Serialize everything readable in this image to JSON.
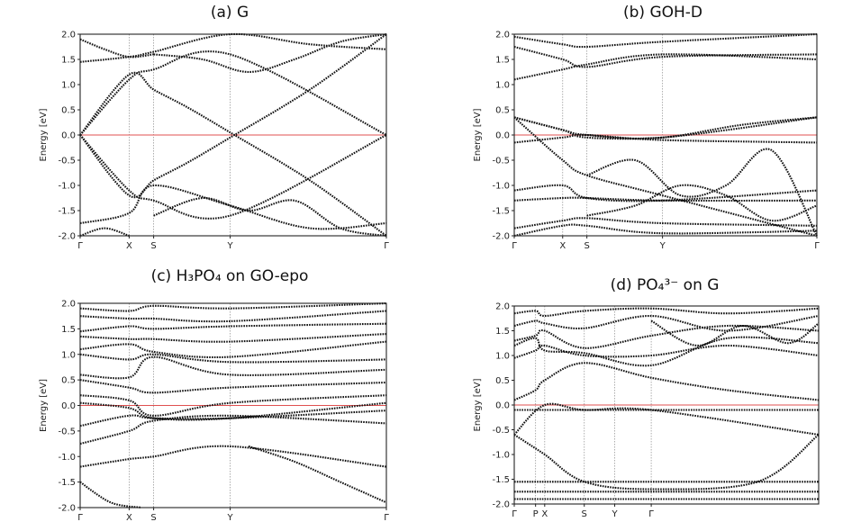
{
  "chart_data": [
    {
      "type": "line",
      "title": "(a) G",
      "ylabel": "Energy [eV]",
      "ylim": [
        -2.0,
        2.0
      ],
      "yticks": [
        "2.0",
        "1.5",
        "1.0",
        "0.5",
        "0.0",
        "-0.5",
        "-1.0",
        "-1.5",
        "-2.0"
      ],
      "kpoints": [
        {
          "label": "Γ",
          "x": 0
        },
        {
          "label": "X",
          "x": 0.16
        },
        {
          "label": "S",
          "x": 0.24
        },
        {
          "label": "Y",
          "x": 0.49
        },
        {
          "label": "Γ",
          "x": 1
        }
      ],
      "fermi_level": 0.0,
      "series": [
        {
          "x": [
            0,
            0.16,
            0.24,
            0.49,
            1
          ],
          "values": [
            0,
            1.1,
            1.3,
            1.6,
            0
          ]
        },
        {
          "x": [
            0,
            0.16,
            0.24,
            0.49,
            1
          ],
          "values": [
            0,
            -1.1,
            -1.3,
            -1.6,
            0
          ]
        },
        {
          "x": [
            0,
            0.16,
            0.24,
            0.35,
            0.49,
            0.75,
            1
          ],
          "values": [
            0,
            1.2,
            0.9,
            0.55,
            0.05,
            -0.9,
            -2.0
          ]
        },
        {
          "x": [
            0,
            0.16,
            0.24,
            0.35,
            0.49,
            0.75,
            1
          ],
          "values": [
            0,
            -1.2,
            -0.9,
            -0.55,
            -0.05,
            0.9,
            2.0
          ]
        },
        {
          "x": [
            0,
            0.16,
            0.24,
            0.49,
            0.75,
            1
          ],
          "values": [
            1.45,
            1.55,
            1.65,
            2.0,
            1.8,
            1.7
          ]
        },
        {
          "x": [
            0,
            0.16,
            0.24,
            0.49,
            0.75,
            1
          ],
          "values": [
            -1.75,
            -1.55,
            -1.0,
            -1.4,
            -1.85,
            -1.75
          ]
        },
        {
          "x": [
            0,
            0.08,
            0.16,
            0.24
          ],
          "values": [
            1.9,
            1.7,
            1.55,
            1.6
          ]
        },
        {
          "x": [
            0,
            0.08,
            0.16
          ],
          "values": [
            -2.0,
            -1.85,
            -2.0
          ]
        },
        {
          "x": [
            0.24,
            0.4,
            0.55,
            0.7,
            0.85,
            1
          ],
          "values": [
            1.6,
            1.5,
            1.25,
            1.5,
            1.85,
            2.0
          ]
        },
        {
          "x": [
            0.24,
            0.4,
            0.55,
            0.7,
            0.85,
            1
          ],
          "values": [
            -1.6,
            -1.25,
            -1.5,
            -1.3,
            -1.85,
            -2.0
          ]
        }
      ]
    },
    {
      "type": "line",
      "title": "(b) GOH-D",
      "ylabel": "Energy [eV]",
      "ylim": [
        -2.0,
        2.0
      ],
      "yticks": [
        "2.0",
        "1.5",
        "1.0",
        "0.5",
        "0.0",
        "-0.5",
        "-1.0",
        "-1.5",
        "-2.0"
      ],
      "kpoints": [
        {
          "label": "Γ",
          "x": 0
        },
        {
          "label": "X",
          "x": 0.16
        },
        {
          "label": "S",
          "x": 0.24
        },
        {
          "label": "Y",
          "x": 0.49
        },
        {
          "label": "Γ",
          "x": 1
        }
      ],
      "fermi_level": 0.0,
      "series": [
        {
          "x": [
            0,
            0.16,
            0.24,
            0.49,
            1
          ],
          "values": [
            0.35,
            0.1,
            0.0,
            -0.05,
            0.35
          ]
        },
        {
          "x": [
            0,
            0.16,
            0.24,
            0.49,
            1
          ],
          "values": [
            0.35,
            -0.5,
            -0.8,
            -1.2,
            -2.0
          ]
        },
        {
          "x": [
            0,
            0.16,
            0.24,
            0.49,
            1
          ],
          "values": [
            -0.15,
            -0.05,
            0.0,
            -0.1,
            -0.15
          ]
        },
        {
          "x": [
            0,
            0.16,
            0.24,
            0.49,
            0.75,
            1
          ],
          "values": [
            0.35,
            0.1,
            -0.05,
            -0.05,
            0.2,
            0.35
          ]
        },
        {
          "x": [
            0,
            0.16,
            0.24,
            0.49,
            1
          ],
          "values": [
            1.1,
            1.3,
            1.4,
            1.6,
            1.5
          ]
        },
        {
          "x": [
            0,
            0.16,
            0.24,
            0.49,
            1
          ],
          "values": [
            1.75,
            1.5,
            1.35,
            1.55,
            1.6
          ]
        },
        {
          "x": [
            0,
            0.16,
            0.24,
            0.49,
            1
          ],
          "values": [
            1.95,
            1.8,
            1.75,
            1.85,
            2.0
          ]
        },
        {
          "x": [
            0,
            0.16,
            0.24,
            0.49,
            1
          ],
          "values": [
            -1.1,
            -1.0,
            -1.25,
            -1.3,
            -1.1
          ]
        },
        {
          "x": [
            0,
            0.16,
            0.24,
            0.49,
            1
          ],
          "values": [
            -1.3,
            -1.25,
            -1.25,
            -1.3,
            -1.3
          ]
        },
        {
          "x": [
            0,
            0.16,
            0.24,
            0.49,
            1
          ],
          "values": [
            -1.85,
            -1.7,
            -1.65,
            -1.75,
            -1.8
          ]
        },
        {
          "x": [
            0,
            0.16,
            0.24,
            0.49,
            1
          ],
          "values": [
            -2.0,
            -1.8,
            -1.8,
            -1.95,
            -1.9
          ]
        },
        {
          "x": [
            0.24,
            0.4,
            0.55,
            0.7,
            0.85,
            1
          ],
          "values": [
            -0.8,
            -0.5,
            -1.2,
            -1.0,
            -0.3,
            -2.0
          ]
        },
        {
          "x": [
            0.24,
            0.4,
            0.55,
            0.7,
            0.85,
            1
          ],
          "values": [
            -1.6,
            -1.4,
            -1.0,
            -1.2,
            -1.7,
            -1.4
          ]
        }
      ]
    },
    {
      "type": "line",
      "title": "(c) H₃PO₄ on GO-epo",
      "ylabel": "Energy [eV]",
      "ylim": [
        -2.0,
        2.0
      ],
      "yticks": [
        "2.0",
        "1.5",
        "1.0",
        "0.5",
        "0.0",
        "-0.5",
        "-1.0",
        "-1.5",
        "-2.0"
      ],
      "kpoints": [
        {
          "label": "Γ",
          "x": 0
        },
        {
          "label": "X",
          "x": 0.16
        },
        {
          "label": "S",
          "x": 0.24
        },
        {
          "label": "Y",
          "x": 0.49
        },
        {
          "label": "Γ",
          "x": 1
        }
      ],
      "fermi_level": 0.0,
      "series": [
        {
          "x": [
            0,
            0.16,
            0.24,
            0.49,
            1
          ],
          "values": [
            -1.2,
            -1.05,
            -1.0,
            -0.8,
            -1.2
          ]
        },
        {
          "x": [
            0,
            0.16,
            0.24,
            0.49,
            1
          ],
          "values": [
            -0.75,
            -0.5,
            -0.3,
            -0.2,
            -0.35
          ]
        },
        {
          "x": [
            0,
            0.16,
            0.24,
            0.49,
            1
          ],
          "values": [
            -0.4,
            -0.2,
            -0.25,
            -0.25,
            -0.1
          ]
        },
        {
          "x": [
            0,
            0.16,
            0.24,
            0.49,
            1
          ],
          "values": [
            0.05,
            -0.05,
            -0.25,
            -0.25,
            0.05
          ]
        },
        {
          "x": [
            0,
            0.16,
            0.24,
            0.49,
            1
          ],
          "values": [
            0.2,
            0.1,
            -0.2,
            0.05,
            0.2
          ]
        },
        {
          "x": [
            0,
            0.16,
            0.24,
            0.49,
            1
          ],
          "values": [
            0.5,
            0.35,
            0.25,
            0.35,
            0.45
          ]
        },
        {
          "x": [
            0,
            0.16,
            0.24,
            0.49,
            1
          ],
          "values": [
            0.6,
            0.55,
            0.95,
            0.6,
            0.7
          ]
        },
        {
          "x": [
            0,
            0.16,
            0.24,
            0.49,
            1
          ],
          "values": [
            1.0,
            0.9,
            1.0,
            0.85,
            0.9
          ]
        },
        {
          "x": [
            0,
            0.16,
            0.24,
            0.49,
            1
          ],
          "values": [
            1.1,
            1.2,
            1.05,
            0.95,
            1.25
          ]
        },
        {
          "x": [
            0,
            0.16,
            0.24,
            0.49,
            1
          ],
          "values": [
            1.35,
            1.3,
            1.3,
            1.25,
            1.4
          ]
        },
        {
          "x": [
            0,
            0.16,
            0.24,
            0.49,
            1
          ],
          "values": [
            1.45,
            1.55,
            1.5,
            1.55,
            1.6
          ]
        },
        {
          "x": [
            0,
            0.16,
            0.24,
            0.49,
            1
          ],
          "values": [
            1.75,
            1.7,
            1.7,
            1.65,
            1.85
          ]
        },
        {
          "x": [
            0,
            0.16,
            0.24,
            0.49,
            1
          ],
          "values": [
            1.9,
            1.85,
            1.95,
            1.9,
            2.0
          ]
        },
        {
          "x": [
            0,
            0.1,
            0.2
          ],
          "values": [
            -1.5,
            -1.9,
            -2.0
          ]
        },
        {
          "x": [
            0.55,
            0.7,
            0.85,
            1
          ],
          "values": [
            -0.8,
            -1.1,
            -1.5,
            -1.9
          ]
        }
      ]
    },
    {
      "type": "line",
      "title": "(d) PO₄³⁻ on G",
      "ylabel": "Energy [eV]",
      "ylim": [
        -2.0,
        2.0
      ],
      "yticks": [
        "2.0",
        "1.5",
        "1.0",
        "0.5",
        "0.0",
        "-0.5",
        "-1.0",
        "-1.5",
        "-2.0"
      ],
      "kpoints": [
        {
          "label": "Γ",
          "x": 0
        },
        {
          "label": "P",
          "x": 0.07
        },
        {
          "label": "X",
          "x": 0.1
        },
        {
          "label": "S",
          "x": 0.23
        },
        {
          "label": "Y",
          "x": 0.33
        },
        {
          "label": "Γ",
          "x": 0.45
        }
      ],
      "fermi_level": 0.0,
      "series": [
        {
          "x": [
            0,
            0.07,
            0.1,
            0.23,
            0.33,
            0.45,
            1
          ],
          "values": [
            -0.1,
            -0.1,
            -0.1,
            -0.1,
            -0.1,
            -0.1,
            -0.1
          ]
        },
        {
          "x": [
            0,
            0.07,
            0.1,
            0.23,
            0.33,
            0.45,
            1
          ],
          "values": [
            -1.55,
            -1.55,
            -1.55,
            -1.55,
            -1.55,
            -1.55,
            -1.55
          ]
        },
        {
          "x": [
            0,
            0.07,
            0.1,
            0.23,
            0.33,
            0.45,
            1
          ],
          "values": [
            -1.75,
            -1.75,
            -1.75,
            -1.75,
            -1.75,
            -1.75,
            -1.75
          ]
        },
        {
          "x": [
            0,
            0.07,
            0.1,
            0.23,
            0.33,
            0.45,
            1
          ],
          "values": [
            -1.9,
            -1.9,
            -1.9,
            -1.9,
            -1.9,
            -1.9,
            -1.9
          ]
        },
        {
          "x": [
            0,
            0.1,
            0.23,
            0.45,
            0.8,
            1
          ],
          "values": [
            -0.6,
            -1.0,
            -1.55,
            -1.7,
            -1.55,
            -0.6
          ]
        },
        {
          "x": [
            0,
            0.1,
            0.23,
            0.45,
            1
          ],
          "values": [
            -0.6,
            0.0,
            -0.1,
            -0.1,
            -0.6
          ]
        },
        {
          "x": [
            0,
            0.07,
            0.1,
            0.23,
            0.45,
            0.7,
            1
          ],
          "values": [
            0.1,
            0.3,
            0.5,
            0.85,
            0.55,
            0.3,
            0.1
          ]
        },
        {
          "x": [
            0,
            0.07,
            0.1,
            0.23,
            0.45,
            0.7,
            1
          ],
          "values": [
            0.95,
            1.1,
            1.2,
            1.0,
            1.0,
            1.2,
            1.0
          ]
        },
        {
          "x": [
            0,
            0.07,
            0.1,
            0.23,
            0.45,
            0.7,
            1
          ],
          "values": [
            1.3,
            1.4,
            1.5,
            1.15,
            1.4,
            1.6,
            1.5
          ]
        },
        {
          "x": [
            0,
            0.07,
            0.1,
            0.23,
            0.45,
            0.7,
            1
          ],
          "values": [
            1.6,
            1.7,
            1.65,
            1.55,
            1.8,
            1.5,
            1.8
          ]
        },
        {
          "x": [
            0,
            0.07,
            0.1,
            0.23,
            0.45,
            0.7,
            1
          ],
          "values": [
            1.85,
            1.9,
            1.8,
            1.9,
            1.95,
            1.85,
            1.95
          ]
        },
        {
          "x": [
            0,
            0.07,
            0.1,
            0.23,
            0.45,
            0.7,
            1
          ],
          "values": [
            1.2,
            1.35,
            1.1,
            1.05,
            0.8,
            1.35,
            1.25
          ]
        },
        {
          "x": [
            0.45,
            0.6,
            0.75,
            0.9,
            1
          ],
          "values": [
            1.7,
            1.2,
            1.6,
            1.25,
            1.65
          ]
        }
      ]
    }
  ]
}
